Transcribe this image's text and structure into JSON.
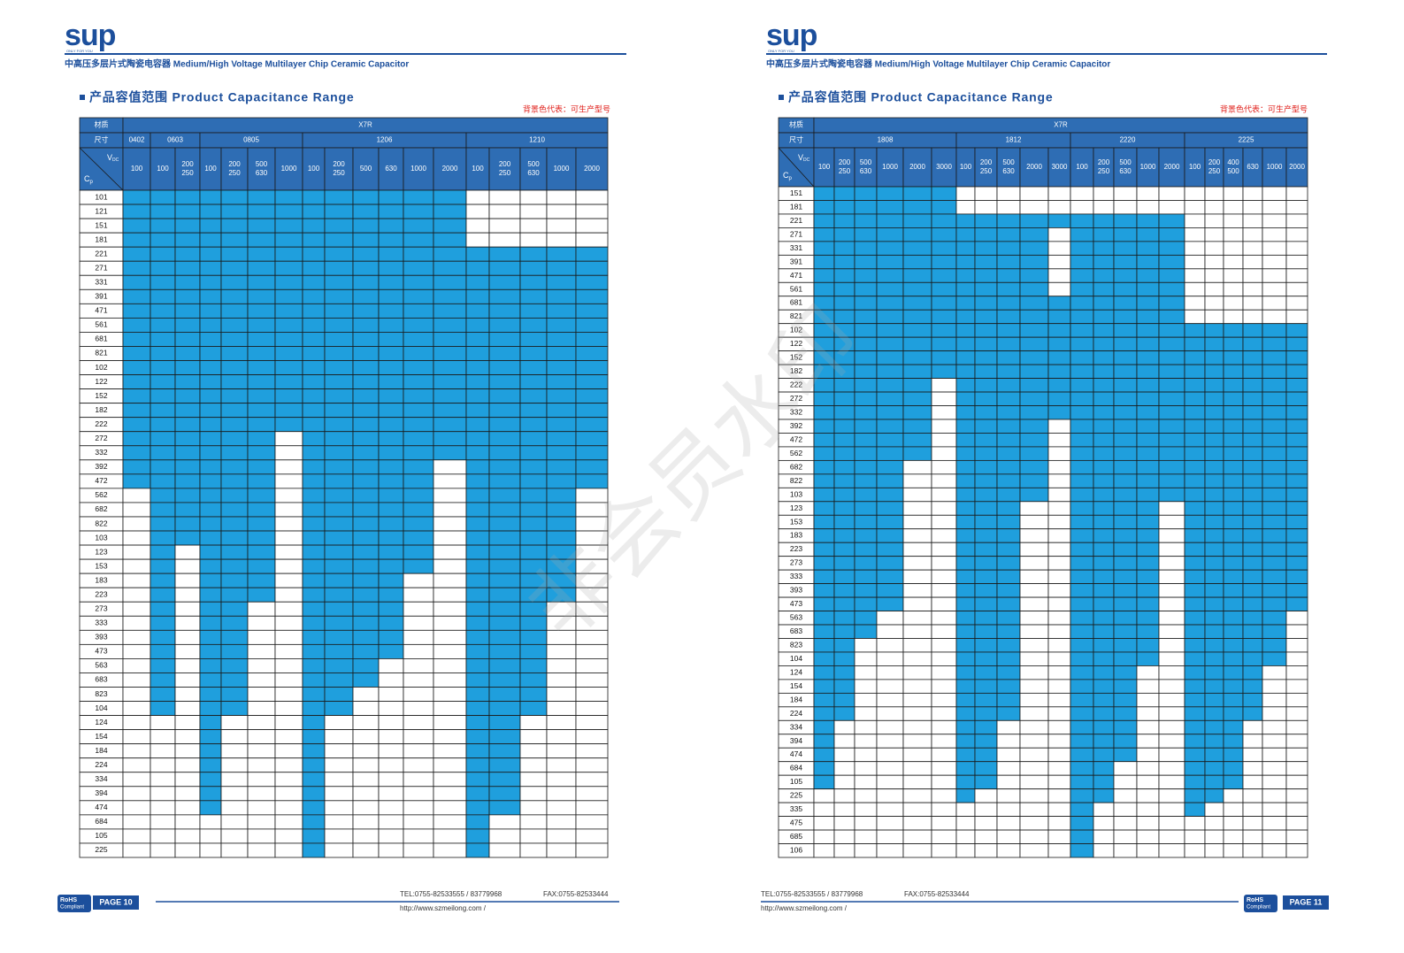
{
  "watermark": "非会员水印",
  "pages": [
    {
      "logo": "sup",
      "logo_sub": "ONLY FOR YOU",
      "subtitle": "中高压多层片式陶瓷电容器  Medium/High Voltage Multilayer Chip Ceramic Capacitor",
      "section_title": "产品容值范围 Product Capacitance Range",
      "legend_note": "背景色代表：可生产型号",
      "table": {
        "material_label": "材质",
        "material": "X7R",
        "size_label": "尺寸",
        "vdc": [
          "V",
          "DC"
        ],
        "cp": [
          "C",
          "p"
        ],
        "rows": [
          "101",
          "121",
          "151",
          "181",
          "221",
          "271",
          "331",
          "391",
          "471",
          "561",
          "681",
          "821",
          "102",
          "122",
          "152",
          "182",
          "222",
          "272",
          "332",
          "392",
          "472",
          "562",
          "682",
          "822",
          "103",
          "123",
          "153",
          "183",
          "223",
          "273",
          "333",
          "393",
          "473",
          "563",
          "683",
          "823",
          "104",
          "124",
          "154",
          "184",
          "224",
          "334",
          "394",
          "474",
          "684",
          "105",
          "225"
        ],
        "groups": [
          {
            "size": "0402",
            "columns": [
              {
                "voltage": [
                  "100"
                ],
                "filled": [
                  [
                    "101",
                    "472"
                  ]
                ]
              }
            ]
          },
          {
            "size": "0603",
            "columns": [
              {
                "voltage": [
                  "100"
                ],
                "filled": [
                  [
                    "101",
                    "104"
                  ]
                ]
              },
              {
                "voltage": [
                  "200",
                  "250"
                ],
                "filled": [
                  [
                    "101",
                    "103"
                  ]
                ]
              }
            ]
          },
          {
            "size": "0805",
            "columns": [
              {
                "voltage": [
                  "100"
                ],
                "filled": [
                  [
                    "101",
                    "474"
                  ]
                ]
              },
              {
                "voltage": [
                  "200",
                  "250"
                ],
                "filled": [
                  [
                    "101",
                    "104"
                  ]
                ]
              },
              {
                "voltage": [
                  "500",
                  "630"
                ],
                "filled": [
                  [
                    "101",
                    "223"
                  ]
                ]
              },
              {
                "voltage": [
                  "1000"
                ],
                "filled": [
                  [
                    "101",
                    "222"
                  ]
                ]
              }
            ]
          },
          {
            "size": "1206",
            "columns": [
              {
                "voltage": [
                  "100"
                ],
                "filled": [
                  [
                    "101",
                    "225"
                  ]
                ]
              },
              {
                "voltage": [
                  "200",
                  "250"
                ],
                "filled": [
                  [
                    "101",
                    "104"
                  ]
                ]
              },
              {
                "voltage": [
                  "500"
                ],
                "filled": [
                  [
                    "101",
                    "683"
                  ]
                ]
              },
              {
                "voltage": [
                  "630"
                ],
                "filled": [
                  [
                    "101",
                    "473"
                  ]
                ]
              },
              {
                "voltage": [
                  "1000"
                ],
                "filled": [
                  [
                    "101",
                    "153"
                  ]
                ]
              },
              {
                "voltage": [
                  "2000"
                ],
                "filled": [
                  [
                    "101",
                    "332"
                  ]
                ]
              }
            ]
          },
          {
            "size": "1210",
            "columns": [
              {
                "voltage": [
                  "100"
                ],
                "filled": [
                  [
                    "221",
                    "225"
                  ]
                ]
              },
              {
                "voltage": [
                  "200",
                  "250"
                ],
                "filled": [
                  [
                    "221",
                    "474"
                  ]
                ]
              },
              {
                "voltage": [
                  "500",
                  "630"
                ],
                "filled": [
                  [
                    "221",
                    "104"
                  ]
                ]
              },
              {
                "voltage": [
                  "1000"
                ],
                "filled": [
                  [
                    "221",
                    "223"
                  ]
                ]
              },
              {
                "voltage": [
                  "2000"
                ],
                "filled": [
                  [
                    "221",
                    "472"
                  ]
                ]
              }
            ]
          }
        ]
      },
      "footer": {
        "rohs": [
          "RoHS",
          "Compliant"
        ],
        "page": "PAGE 10",
        "tel": "TEL:0755-82533555 / 83779968",
        "fax": "FAX:0755-82533444",
        "url": "http://www.szmeilong.com /"
      }
    },
    {
      "logo": "sup",
      "logo_sub": "ONLY FOR YOU",
      "subtitle": "中高压多层片式陶瓷电容器  Medium/High Voltage Multilayer Chip Ceramic Capacitor",
      "section_title": "产品容值范围 Product Capacitance Range",
      "legend_note": "背景色代表：可生产型号",
      "table": {
        "material_label": "材质",
        "material": "X7R",
        "size_label": "尺寸",
        "vdc": [
          "V",
          "DC"
        ],
        "cp": [
          "C",
          "p"
        ],
        "rows": [
          "151",
          "181",
          "221",
          "271",
          "331",
          "391",
          "471",
          "561",
          "681",
          "821",
          "102",
          "122",
          "152",
          "182",
          "222",
          "272",
          "332",
          "392",
          "472",
          "562",
          "682",
          "822",
          "103",
          "123",
          "153",
          "183",
          "223",
          "273",
          "333",
          "393",
          "473",
          "563",
          "683",
          "823",
          "104",
          "124",
          "154",
          "184",
          "224",
          "334",
          "394",
          "474",
          "684",
          "105",
          "225",
          "335",
          "475",
          "685",
          "106"
        ],
        "groups": [
          {
            "size": "1808",
            "columns": [
              {
                "voltage": [
                  "100"
                ],
                "filled": [
                  [
                    "151",
                    "105"
                  ]
                ]
              },
              {
                "voltage": [
                  "200",
                  "250"
                ],
                "filled": [
                  [
                    "151",
                    "224"
                  ]
                ]
              },
              {
                "voltage": [
                  "500",
                  "630"
                ],
                "filled": [
                  [
                    "151",
                    "683"
                  ]
                ]
              },
              {
                "voltage": [
                  "1000"
                ],
                "filled": [
                  [
                    "151",
                    "473"
                  ]
                ]
              },
              {
                "voltage": [
                  "2000"
                ],
                "filled": [
                  [
                    "151",
                    "562"
                  ]
                ]
              },
              {
                "voltage": [
                  "3000"
                ],
                "filled": [
                  [
                    "151",
                    "182"
                  ]
                ]
              }
            ]
          },
          {
            "size": "1812",
            "columns": [
              {
                "voltage": [
                  "100"
                ],
                "filled": [
                  [
                    "221",
                    "225"
                  ]
                ]
              },
              {
                "voltage": [
                  "200",
                  "250"
                ],
                "filled": [
                  [
                    "221",
                    "105"
                  ]
                ]
              },
              {
                "voltage": [
                  "500",
                  "630"
                ],
                "filled": [
                  [
                    "221",
                    "224"
                  ]
                ]
              },
              {
                "voltage": [
                  "2000"
                ],
                "filled": [
                  [
                    "221",
                    "103"
                  ]
                ]
              },
              {
                "voltage": [
                  "3000"
                ],
                "filled": [
                  [
                    "221",
                    "221"
                  ],
                  [
                    "681",
                    "332"
                  ]
                ]
              }
            ]
          },
          {
            "size": "2220",
            "columns": [
              {
                "voltage": [
                  "100"
                ],
                "filled": [
                  [
                    "221",
                    "106"
                  ]
                ]
              },
              {
                "voltage": [
                  "200",
                  "250"
                ],
                "filled": [
                  [
                    "221",
                    "225"
                  ]
                ]
              },
              {
                "voltage": [
                  "500",
                  "630"
                ],
                "filled": [
                  [
                    "221",
                    "474"
                  ]
                ]
              },
              {
                "voltage": [
                  "1000"
                ],
                "filled": [
                  [
                    "221",
                    "104"
                  ]
                ]
              },
              {
                "voltage": [
                  "2000"
                ],
                "filled": [
                  [
                    "221",
                    "103"
                  ]
                ]
              }
            ]
          },
          {
            "size": "2225",
            "columns": [
              {
                "voltage": [
                  "100"
                ],
                "filled": [
                  [
                    "102",
                    "335"
                  ]
                ]
              },
              {
                "voltage": [
                  "200",
                  "250"
                ],
                "filled": [
                  [
                    "102",
                    "225"
                  ]
                ]
              },
              {
                "voltage": [
                  "400",
                  "500"
                ],
                "filled": [
                  [
                    "102",
                    "105"
                  ]
                ]
              },
              {
                "voltage": [
                  "630"
                ],
                "filled": [
                  [
                    "102",
                    "224"
                  ]
                ]
              },
              {
                "voltage": [
                  "1000"
                ],
                "filled": [
                  [
                    "102",
                    "104"
                  ]
                ]
              },
              {
                "voltage": [
                  "2000"
                ],
                "filled": [
                  [
                    "102",
                    "473"
                  ]
                ]
              }
            ]
          }
        ]
      },
      "footer": {
        "rohs": [
          "RoHS",
          "Compliant"
        ],
        "page": "PAGE 11",
        "tel": "TEL:0755-82533555 / 83779968",
        "fax": "FAX:0755-82533444",
        "url": "http://www.szmeilong.com /"
      }
    }
  ]
}
